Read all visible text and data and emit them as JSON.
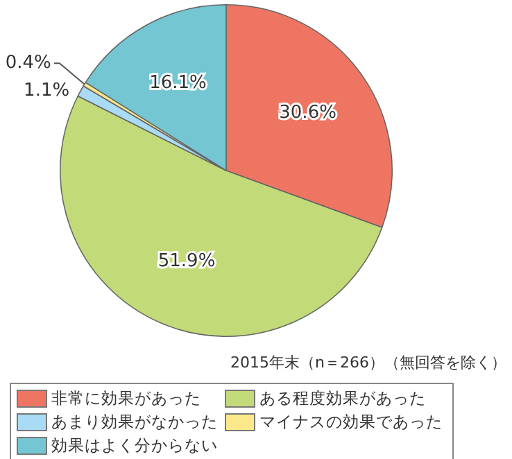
{
  "chart_data": {
    "type": "pie",
    "categories": [
      "非常に効果があった",
      "ある程度効果があった",
      "あまり効果がなかった",
      "マイナスの効果であった",
      "効果はよく分からない"
    ],
    "values": [
      30.6,
      51.9,
      1.1,
      0.4,
      16.1
    ],
    "colors": [
      "#ef7563",
      "#c2da78",
      "#a9dcf4",
      "#fbe98c",
      "#74c6d2"
    ],
    "value_labels": [
      "30.6%",
      "51.9%",
      "1.1%",
      "0.4%",
      "16.1%"
    ],
    "annotations": [
      "2015年末（n＝266）（無回答を除く）"
    ],
    "legend": "bottom"
  }
}
